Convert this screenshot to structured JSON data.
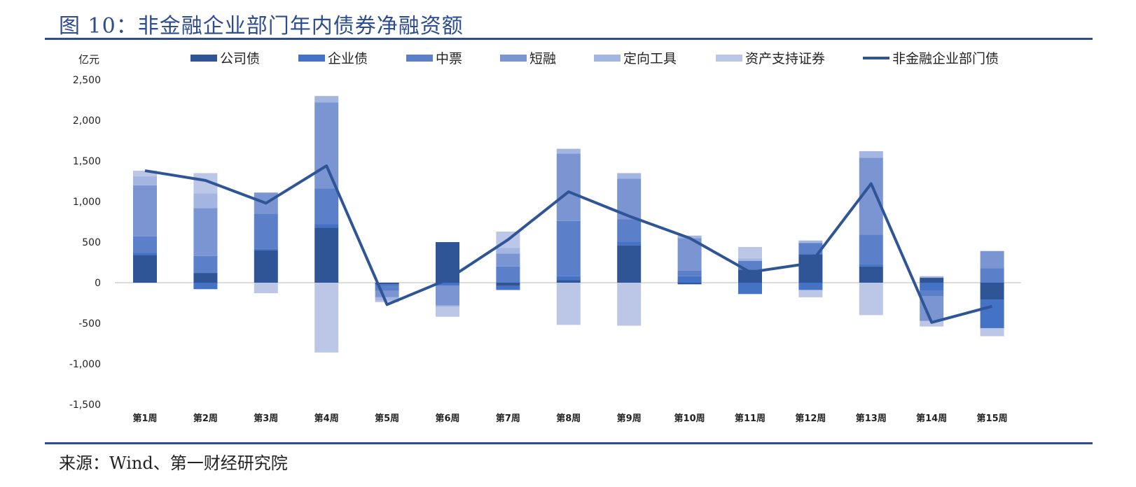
{
  "header": {
    "title": "图 10：非金融企业部门年内债券净融资额"
  },
  "footer": {
    "source": "来源：Wind、第一财经研究院"
  },
  "colors": {
    "公司债": "#2f5597",
    "企业债": "#4472c4",
    "中票": "#5b7fc9",
    "短融": "#7a95d2",
    "定向工具": "#a3b6e2",
    "资产支持证券": "#bcc6e6",
    "非金融企业部门债": "#2f5597",
    "rule": "#2e4d8f"
  },
  "chart_data": {
    "type": "bar",
    "stacked": true,
    "y_unit_label": "亿元",
    "ylim": [
      -1500,
      2500
    ],
    "yticks": [
      -1500,
      -1000,
      -500,
      0,
      500,
      1000,
      1500,
      2000,
      2500
    ],
    "ytick_labels": [
      "-1,500",
      "-1,000",
      "-500",
      "0",
      "500",
      "1,000",
      "1,500",
      "2,000",
      "2,500"
    ],
    "legend_position": "top",
    "grid": false,
    "categories": [
      "第1周",
      "第2周",
      "第3周",
      "第4周",
      "第5周",
      "第6周",
      "第7周",
      "第8周",
      "第9周",
      "第10周",
      "第11周",
      "第12周",
      "第13周",
      "第14周",
      "第15周"
    ],
    "series": [
      {
        "name": "公司债",
        "type": "bar",
        "values": [
          340,
          120,
          400,
          680,
          -20,
          500,
          -40,
          30,
          460,
          -20,
          160,
          350,
          200,
          60,
          -210
        ]
      },
      {
        "name": "企业债",
        "type": "bar",
        "values": [
          30,
          -80,
          20,
          40,
          -20,
          -30,
          -50,
          50,
          40,
          80,
          -140,
          -90,
          30,
          -100,
          -350
        ]
      },
      {
        "name": "中票",
        "type": "bar",
        "values": [
          200,
          210,
          430,
          440,
          -60,
          -10,
          200,
          680,
          280,
          70,
          110,
          140,
          360,
          -70,
          180
        ]
      },
      {
        "name": "短融",
        "type": "bar",
        "values": [
          630,
          590,
          260,
          1060,
          -80,
          -240,
          160,
          830,
          500,
          400,
          0,
          0,
          950,
          -300,
          210
        ]
      },
      {
        "name": "定向工具",
        "type": "bar",
        "values": [
          110,
          180,
          0,
          80,
          -40,
          -20,
          70,
          60,
          70,
          30,
          30,
          30,
          80,
          20,
          0
        ]
      },
      {
        "name": "资产支持证券",
        "type": "bar",
        "values": [
          70,
          250,
          -130,
          -860,
          -20,
          -120,
          200,
          -520,
          -530,
          0,
          140,
          -90,
          -400,
          -70,
          -100
        ]
      },
      {
        "name": "非金融企业部门债",
        "type": "line",
        "values": [
          1380,
          1260,
          980,
          1440,
          -270,
          40,
          530,
          1120,
          820,
          550,
          130,
          240,
          1220,
          -490,
          -290
        ]
      }
    ]
  }
}
